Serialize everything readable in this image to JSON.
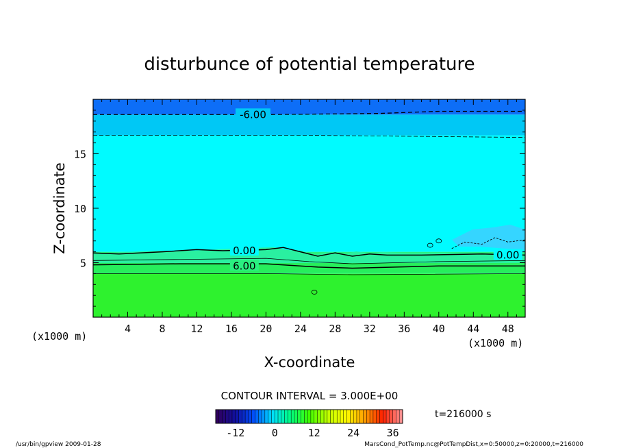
{
  "chart_data": {
    "type": "contour",
    "title": "disturbunce of potential temperature",
    "xlabel": "X-coordinate",
    "ylabel": "Z-coordinate",
    "x_units_left": "(x1000 m)",
    "x_units_right": "(x1000 m)",
    "xlim": [
      0,
      50
    ],
    "ylim": [
      0,
      20
    ],
    "x_ticks": [
      4,
      8,
      12,
      16,
      20,
      24,
      28,
      32,
      36,
      40,
      44,
      48
    ],
    "y_ticks": [
      5,
      10,
      15
    ],
    "contour_labels": [
      {
        "text": "-6.00",
        "x": 18.5,
        "z": 18.6
      },
      {
        "text": "0.00",
        "x": 17.5,
        "z": 6.1
      },
      {
        "text": "6.00",
        "x": 17.5,
        "z": 4.7
      },
      {
        "text": "0.00",
        "x": 48.0,
        "z": 5.7
      }
    ],
    "contour_interval_text": "CONTOUR INTERVAL = 3.000E+00",
    "time_text": "t=216000 s",
    "colorbar": {
      "ticks": [
        "-12",
        "0",
        "12",
        "24",
        "36"
      ],
      "range": [
        -18,
        39
      ],
      "colors": [
        "#300060",
        "#1010a0",
        "#0050ff",
        "#00e0ff",
        "#00ff80",
        "#40ff00",
        "#c0ff00",
        "#ffff00",
        "#ffa000",
        "#ff2000",
        "#ff9090"
      ]
    },
    "bands": [
      {
        "zmin": 0.0,
        "zmax": 4.0,
        "color": "#2ef22e"
      },
      {
        "zmin": 4.0,
        "zmax": 6.0,
        "color": "#2af080"
      },
      {
        "zmin": 6.0,
        "zmax": 16.7,
        "color": "#00fbff"
      },
      {
        "zmin": 16.7,
        "zmax": 18.6,
        "color": "#00c8f5"
      },
      {
        "zmin": 18.6,
        "zmax": 20.0,
        "color": "#0d6ef7"
      }
    ]
  },
  "footer": {
    "left": "/usr/bin/gpview   2009-01-28",
    "right": "MarsCond_PotTemp.nc@PotTempDist,x=0:50000,z=0:20000,t=216000"
  }
}
